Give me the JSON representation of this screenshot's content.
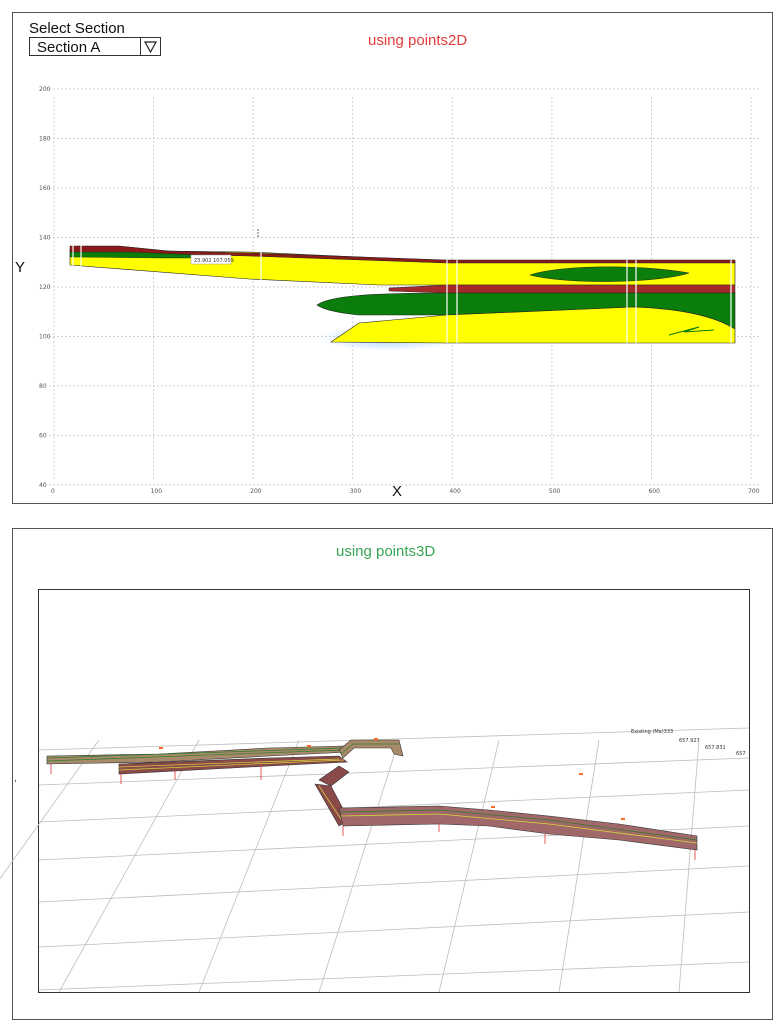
{
  "selector": {
    "label": "Select Section",
    "value": "Section A"
  },
  "panel2d": {
    "title": "using points2D",
    "xlabel": "X",
    "ylabel": "Y",
    "point_label": "23.902 107.059"
  },
  "panel3d": {
    "title": "using points3D",
    "labels": [
      "Existing (Ma)333",
      "657.927",
      "657.831",
      "657"
    ]
  },
  "chart_data": {
    "type": "area",
    "xlim": [
      -5,
      720
    ],
    "ylim": [
      40,
      200
    ],
    "x_ticks": [
      "0",
      "100",
      "200",
      "300",
      "400",
      "500",
      "600",
      "700"
    ],
    "y_ticks": [
      "40",
      "60",
      "80",
      "100",
      "120",
      "140",
      "160",
      "180",
      "200"
    ],
    "grid": true,
    "colors": {
      "yellow": "#ffff00",
      "green": "#0a7d0a",
      "red": "#a52a2a",
      "glow": "#9ecbff"
    }
  }
}
